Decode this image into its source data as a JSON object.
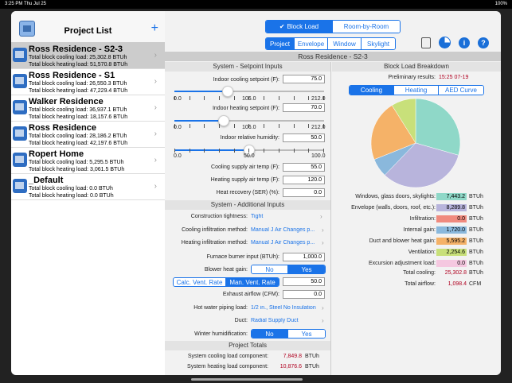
{
  "status": {
    "time": "3:25 PM",
    "date": "Thu Jul 25",
    "battery": "100%"
  },
  "list": {
    "title": "Project List",
    "add": "+",
    "items": [
      {
        "name": "Ross Residence - S2-3",
        "cool": "Total block cooling load: 25,302.8 BTUh",
        "heat": "Total block heating load: 51,570.8 BTUh"
      },
      {
        "name": "Ross Residence - S1",
        "cool": "Total block cooling load: 26,550.3 BTUh",
        "heat": "Total block heating load: 47,229.4 BTUh"
      },
      {
        "name": "Walker Residence",
        "cool": "Total block cooling load: 36,937.1 BTUh",
        "heat": "Total block heating load: 18,157.6 BTUh"
      },
      {
        "name": "Ross Residence",
        "cool": "Total block cooling load: 28,186.2 BTUh",
        "heat": "Total block heating load: 42,197.6 BTUh"
      },
      {
        "name": "Ropert Home",
        "cool": "Total block cooling load: 5,295.5 BTUh",
        "heat": "Total block heating load: 3,061.5 BTUh"
      },
      {
        "name": "_Default",
        "cool": "Total block cooling load: 0.0 BTUh",
        "heat": "Total block heating load: 0.0 BTUh"
      }
    ]
  },
  "toptabs": {
    "block": "Block Load",
    "room": "Room-by-Room"
  },
  "subtabs": [
    "Project",
    "Envelope",
    "Window",
    "Skylight"
  ],
  "project_title": "Ross Residence - S2-3",
  "setpoint": {
    "header": "System - Setpoint Inputs",
    "cool_label": "Indoor cooling setpoint (F):",
    "cool_val": "75.0",
    "cool_min": "0.0",
    "cool_mid": "106.0",
    "cool_max": "212.0",
    "cool_frac": 0.354,
    "heat_label": "Indoor heating setpoint (F):",
    "heat_val": "70.0",
    "heat_min": "0.0",
    "heat_mid": "106.0",
    "heat_max": "212.0",
    "heat_frac": 0.33,
    "hum_label": "Indoor relative humidity:",
    "hum_val": "50.0",
    "hum_min": "0.0",
    "hum_mid": "50.0",
    "hum_max": "100.0",
    "hum_frac": 0.5,
    "csat_label": "Cooling supply air temp (F):",
    "csat_val": "55.0",
    "hsat_label": "Heating supply air temp (F):",
    "hsat_val": "120.0",
    "hr_label": "Heat recovery (SER) (%):",
    "hr_val": "0.0"
  },
  "additional": {
    "header": "System - Additional Inputs",
    "tight_label": "Construction tightness:",
    "tight_val": "Tight",
    "cinf_label": "Cooling infiltration method:",
    "cinf_val": "Manual J Air Changes p...",
    "hinf_label": "Heating infiltration method:",
    "hinf_val": "Manual J Air Changes p...",
    "furnace_label": "Furnace burner input (BTUh):",
    "furnace_val": "1,000.0",
    "blower_label": "Blower heat gain:",
    "no": "No",
    "yes": "Yes",
    "calc_vent": "Calc. Vent. Rate",
    "man_vent": "Man. Vent. Rate",
    "vent_val": "50.0",
    "exhaust_label": "Exhaust airflow (CFM):",
    "exhaust_val": "0.0",
    "hw_label": "Hot water piping load:",
    "hw_val": "1/2 in., Steel No Insulation",
    "duct_label": "Duct:",
    "duct_val": "Radial Supply Duct",
    "winter_label": "Winter humidification:"
  },
  "totals": {
    "header": "Project Totals",
    "cool_label": "System cooling load component:",
    "cool_val": "7,849.8",
    "cool_unit": "BTUh",
    "heat_label": "System heating load component:",
    "heat_val": "10,876.6",
    "heat_unit": "BTUh"
  },
  "breakdown": {
    "header": "Block Load Breakdown",
    "prelim_label": "Preliminary results:",
    "prelim_val": "15:25 07-19",
    "tabs": [
      "Cooling",
      "Heating",
      "AED Curve"
    ],
    "rows": [
      {
        "label": "Windows, glass doors, skylights:",
        "value": "7,443.2",
        "unit": "BTUh",
        "color": "#8fd8c8",
        "frac": 1.0
      },
      {
        "label": "Envelope (walls, doors, roof, etc.):",
        "value": "8,289.8",
        "unit": "BTUh",
        "color": "#b8b4dc",
        "frac": 1.0
      },
      {
        "label": "Infiltration:",
        "value": "0.0",
        "unit": "BTUh",
        "color": "#f08a7e",
        "frac": 1.0
      },
      {
        "label": "Internal gain:",
        "value": "1,720.0",
        "unit": "BTUh",
        "color": "#8ab8dc",
        "frac": 1.0
      },
      {
        "label": "Duct and blower heat gain:",
        "value": "5,595.2",
        "unit": "BTUh",
        "color": "#f5b268",
        "frac": 1.0
      },
      {
        "label": "Ventilation:",
        "value": "2,254.6",
        "unit": "BTUh",
        "color": "#c8e07a",
        "frac": 1.0
      },
      {
        "label": "Excursion adjustment load:",
        "value": "0.0",
        "unit": "BTUh",
        "color": "#f5c8e0",
        "frac": 1.0
      }
    ],
    "total_cool_label": "Total cooling:",
    "total_cool_val": "25,302.8",
    "total_cool_unit": "BTUh",
    "airflow_label": "Total airflow:",
    "airflow_val": "1,098.4",
    "airflow_unit": "CFM",
    "pie": [
      {
        "value": 7443.2,
        "color": "#8fd8c8"
      },
      {
        "value": 8289.8,
        "color": "#b8b4dc"
      },
      {
        "value": 1720.0,
        "color": "#8ab8dc"
      },
      {
        "value": 5595.2,
        "color": "#f5b268"
      },
      {
        "value": 2254.6,
        "color": "#c8e07a"
      }
    ]
  }
}
